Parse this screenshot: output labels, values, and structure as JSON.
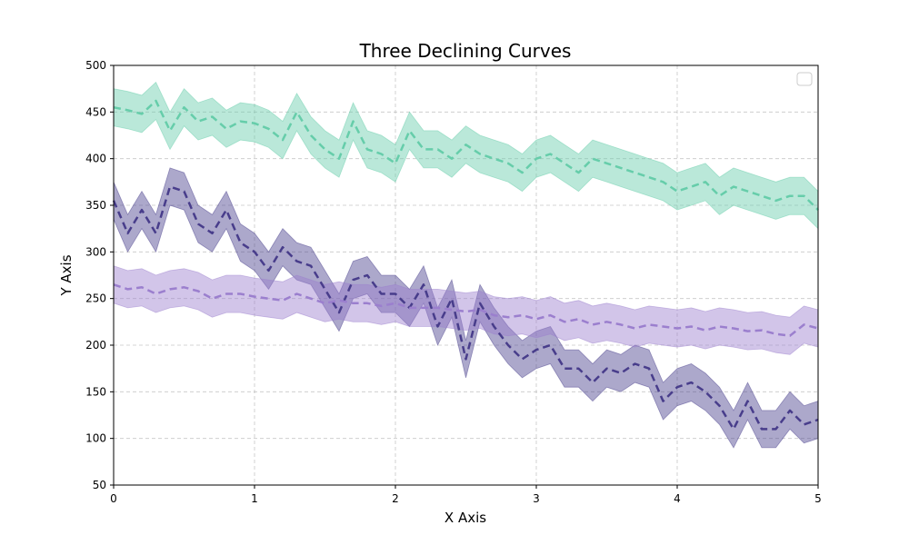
{
  "chart_data": {
    "type": "line",
    "title": "Three Declining Curves",
    "xlabel": "X Axis",
    "ylabel": "Y Axis",
    "xlim": [
      0,
      5
    ],
    "ylim": [
      50,
      500
    ],
    "xticks": [
      0,
      1,
      2,
      3,
      4,
      5
    ],
    "yticks": [
      50,
      100,
      150,
      200,
      250,
      300,
      350,
      400,
      450,
      500
    ],
    "grid": true,
    "legend": "top-right (empty)",
    "x": [
      0,
      0.1,
      0.2,
      0.3,
      0.4,
      0.5,
      0.6,
      0.7,
      0.8,
      0.9,
      1.0,
      1.1,
      1.2,
      1.3,
      1.4,
      1.5,
      1.6,
      1.7,
      1.8,
      1.9,
      2.0,
      2.1,
      2.2,
      2.3,
      2.4,
      2.5,
      2.6,
      2.7,
      2.8,
      2.9,
      3.0,
      3.1,
      3.2,
      3.3,
      3.4,
      3.5,
      3.6,
      3.7,
      3.8,
      3.9,
      4.0,
      4.1,
      4.2,
      4.3,
      4.4,
      4.5,
      4.6,
      4.7,
      4.8,
      4.9,
      5.0
    ],
    "series": [
      {
        "color": "#66cdaa",
        "band_half_width": 20,
        "values": [
          455,
          452,
          448,
          462,
          430,
          455,
          440,
          445,
          432,
          440,
          438,
          432,
          420,
          450,
          425,
          410,
          400,
          440,
          410,
          405,
          395,
          430,
          410,
          410,
          400,
          415,
          405,
          400,
          395,
          385,
          400,
          405,
          395,
          385,
          400,
          395,
          390,
          385,
          380,
          375,
          365,
          370,
          375,
          360,
          370,
          365,
          360,
          355,
          360,
          360,
          345
        ]
      },
      {
        "color": "#483d8b",
        "band_half_width": 20,
        "values": [
          355,
          320,
          345,
          320,
          370,
          365,
          330,
          320,
          345,
          310,
          300,
          280,
          305,
          290,
          285,
          260,
          235,
          270,
          275,
          255,
          255,
          240,
          265,
          220,
          250,
          185,
          245,
          220,
          200,
          185,
          195,
          200,
          175,
          175,
          160,
          175,
          170,
          180,
          175,
          140,
          155,
          160,
          150,
          135,
          110,
          140,
          110,
          110,
          130,
          115,
          120
        ]
      },
      {
        "color": "#9b7fce",
        "band_half_width": 20,
        "values": [
          265,
          260,
          262,
          255,
          260,
          262,
          258,
          250,
          255,
          255,
          252,
          250,
          248,
          255,
          250,
          245,
          248,
          245,
          245,
          242,
          245,
          240,
          240,
          240,
          238,
          236,
          238,
          232,
          230,
          232,
          228,
          232,
          225,
          228,
          222,
          225,
          222,
          218,
          222,
          220,
          218,
          220,
          216,
          220,
          218,
          215,
          216,
          212,
          210,
          222,
          218
        ]
      }
    ]
  }
}
